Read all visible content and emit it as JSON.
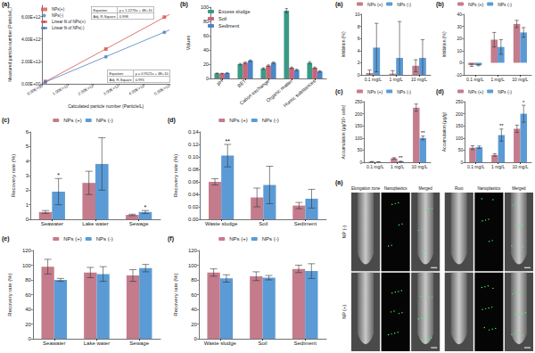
{
  "chart_data": [
    {
      "type": "scatter",
      "panel": "(a)",
      "x_label": "Calculated particle number (Particle/L)",
      "y_label": "Measured particle number (Particle/L)",
      "xlim": [
        0,
        5000000000000.0
      ],
      "xticks": [
        {
          "value": 0,
          "label": "0.00E+00"
        },
        {
          "value": 1000000000000.0,
          "label": "1.00E+12"
        },
        {
          "value": 2000000000000.0,
          "label": "2.00E+12"
        },
        {
          "value": 3000000000000.0,
          "label": "3.00E+12"
        },
        {
          "value": 4000000000000.0,
          "label": "4.00E+12"
        },
        {
          "value": 5000000000000.0,
          "label": "5.00E+12"
        }
      ],
      "ylim": [
        0,
        7000000000000.0
      ],
      "yticks": [
        {
          "value": 0,
          "label": "0.00E+00"
        },
        {
          "value": 2000000000000.0,
          "label": "2.00E+12"
        },
        {
          "value": 4000000000000.0,
          "label": "4.00E+12"
        },
        {
          "value": 6000000000000.0,
          "label": "6.00E+12"
        }
      ],
      "grid": false,
      "legend": "top-left",
      "series": [
        {
          "name": "NPs(+)",
          "type": "scatter",
          "marker": "square",
          "color": "#d9534f",
          "x": [
            120000000000.0,
            2500000000000.0,
            4800000000000.0
          ],
          "values": [
            210000000000.0,
            3100000000000.0,
            5950000000000.0
          ]
        },
        {
          "name": "NPs(-)",
          "type": "scatter",
          "marker": "circle",
          "color": "#4f81bd",
          "x": [
            120000000000.0,
            2500000000000.0,
            4800000000000.0
          ],
          "values": [
            160000000000.0,
            2400000000000.0,
            4600000000000.0
          ]
        },
        {
          "name": "Linear fit of NPs(+)",
          "type": "line",
          "line_style": "solid",
          "color": "#d9534f",
          "x": [
            0,
            5000000000000.0
          ],
          "values": [
            40000000000.0,
            6178000000000.0
          ]
        },
        {
          "name": "Linear fit of NPs(-)",
          "type": "line",
          "line_style": "solid",
          "color": "#4f81bd",
          "x": [
            0,
            5000000000000.0
          ],
          "values": [
            40000000000.0,
            4800000000000.0
          ]
        }
      ],
      "equations": [
        {
          "color": "#d9534f",
          "rows": [
            [
              "Equation",
              "y = 1.2276x + 4E+10"
            ],
            [
              "Adj. R-Square",
              "0.998"
            ]
          ]
        },
        {
          "color": "#4f81bd",
          "rows": [
            [
              "Equation",
              "y = 0.9521x + 4E+10"
            ],
            [
              "Adj. R-Square",
              "0.995"
            ]
          ]
        }
      ]
    },
    {
      "type": "bar",
      "panel": "(b)",
      "y_label": "Values",
      "categories": [
        "pH",
        "BET",
        "Cation exchange",
        "Organic matter",
        "Humic substances"
      ],
      "ylim": [
        0,
        100
      ],
      "yticks": [
        0,
        20,
        40,
        60,
        80,
        100
      ],
      "grid": false,
      "legend": "top-left",
      "series": [
        {
          "name": "Excess sludge",
          "color": "#3a9a86",
          "values": [
            7.2,
            20,
            14,
            95,
            22
          ],
          "errors": [
            0.3,
            1,
            1,
            3,
            1.5
          ]
        },
        {
          "name": "Soil",
          "color": "#c9657a",
          "values": [
            7,
            22,
            18,
            15,
            15
          ],
          "errors": [
            0.3,
            1,
            1,
            1,
            1
          ]
        },
        {
          "name": "Sediment",
          "color": "#4c86c6",
          "values": [
            7.5,
            25,
            22,
            12,
            10
          ],
          "errors": [
            0.3,
            1,
            1,
            1,
            1
          ]
        }
      ]
    },
    {
      "type": "bar",
      "panel": "(c)",
      "y_label": "Recovery rate (%)",
      "categories": [
        "Seawater",
        "Lake water",
        "Sewage"
      ],
      "ylim": [
        0,
        6
      ],
      "yticks": [
        0,
        1,
        2,
        3,
        4,
        5,
        6
      ],
      "grid": false,
      "legend": "top",
      "series": [
        {
          "name": "NPs (+)",
          "color": "#c47c8c",
          "values": [
            0.5,
            2.5,
            0.3
          ],
          "errors": [
            0.1,
            0.8,
            0.05
          ]
        },
        {
          "name": "NPs (-)",
          "color": "#5b9bd5",
          "values": [
            1.9,
            3.8,
            0.5
          ],
          "errors": [
            0.9,
            1.8,
            0.1
          ]
        }
      ],
      "annotations": [
        {
          "category": "Seawater",
          "series": "NPs (-)",
          "text": "*"
        },
        {
          "category": "Sewage",
          "series": "NPs (-)",
          "text": "*"
        }
      ]
    },
    {
      "type": "bar",
      "panel": "(d)",
      "y_label": "Recovery rate (%)",
      "categories": [
        "Waste sludge",
        "Soil",
        "Sediment"
      ],
      "ylim": [
        0,
        0.14
      ],
      "yticks": [
        {
          "value": 0,
          "label": "0.00"
        },
        0.02,
        0.04,
        0.06,
        0.08,
        {
          "value": 0.1,
          "label": "0.10"
        },
        0.12,
        0.14
      ],
      "grid": false,
      "legend": "top",
      "series": [
        {
          "name": "NPs (+)",
          "color": "#c47c8c",
          "values": [
            0.06,
            0.035,
            0.022
          ],
          "errors": [
            0.005,
            0.015,
            0.005
          ]
        },
        {
          "name": "NPs (-)",
          "color": "#5b9bd5",
          "values": [
            0.102,
            0.055,
            0.033
          ],
          "errors": [
            0.018,
            0.03,
            0.015
          ]
        }
      ],
      "annotations": [
        {
          "category": "Waste sludge",
          "series": "NPs (-)",
          "text": "**"
        }
      ]
    },
    {
      "type": "bar",
      "panel": "(e)",
      "y_label": "Recovery rate (%)",
      "categories": [
        "Seawater",
        "Lake water",
        "Sewage"
      ],
      "ylim": [
        0,
        120
      ],
      "yticks": [
        0,
        20,
        40,
        60,
        80,
        100,
        120
      ],
      "grid": false,
      "legend": "top",
      "series": [
        {
          "name": "NPs (+)",
          "color": "#c47c8c",
          "values": [
            98,
            90,
            86
          ],
          "errors": [
            10,
            7,
            8
          ]
        },
        {
          "name": "NPs (-)",
          "color": "#5b9bd5",
          "values": [
            80,
            88,
            96
          ],
          "errors": [
            2,
            10,
            5
          ]
        }
      ]
    },
    {
      "type": "bar",
      "panel": "(f)",
      "y_label": "Recovery rate (%)",
      "categories": [
        "Waste sludge",
        "Soil",
        "Sediment"
      ],
      "ylim": [
        0,
        120
      ],
      "yticks": [
        0,
        20,
        40,
        60,
        80,
        100,
        120
      ],
      "grid": false,
      "legend": "top",
      "series": [
        {
          "name": "NPs (+)",
          "color": "#c47c8c",
          "values": [
            90,
            85,
            95
          ],
          "errors": [
            5,
            6,
            5
          ]
        },
        {
          "name": "NPs (-)",
          "color": "#5b9bd5",
          "values": [
            82,
            83,
            92
          ],
          "errors": [
            5,
            3,
            10
          ]
        }
      ]
    },
    {
      "type": "bar",
      "panel": "(a)",
      "y_label": "Inhibition (%)",
      "categories": [
        "0.1 mg/L",
        "1 mg/L",
        "10 mg/L"
      ],
      "ylim": [
        0,
        10
      ],
      "yticks": [
        0,
        2,
        4,
        6,
        8,
        10
      ],
      "grid": false,
      "legend": "top",
      "series": [
        {
          "name": "NPs (+)",
          "color": "#c47c8c",
          "values": [
            0.3,
            0.2,
            1.5
          ],
          "errors": [
            0.5,
            0.5,
            1
          ]
        },
        {
          "name": "NPs (-)",
          "color": "#5b9bd5",
          "values": [
            4.5,
            2.8,
            2.8
          ],
          "errors": [
            4,
            6,
            3
          ]
        }
      ]
    },
    {
      "type": "bar",
      "panel": "(b)",
      "y_label": "Inhibition (%)",
      "categories": [
        "0.1 mg/L",
        "1 mg/L",
        "10 mg/L"
      ],
      "ylim": [
        -10,
        40
      ],
      "yticks": [
        -10,
        0,
        10,
        20,
        30,
        40
      ],
      "grid": false,
      "legend": "top",
      "series": [
        {
          "name": "NPs (+)",
          "color": "#c47c8c",
          "values": [
            -2,
            19,
            32
          ],
          "errors": [
            1,
            6,
            3
          ]
        },
        {
          "name": "NPs (-)",
          "color": "#5b9bd5",
          "values": [
            -2,
            13,
            25
          ],
          "errors": [
            0.5,
            6,
            4
          ]
        }
      ]
    },
    {
      "type": "bar",
      "panel": "(c)",
      "y_label": "Accumulation (μg/10⁸ cells)",
      "categories": [
        "0.1 mg/L",
        "1 mg/L",
        "10 mg/L"
      ],
      "ylim": [
        0,
        250
      ],
      "yticks": [
        0,
        50,
        100,
        150,
        200,
        250
      ],
      "grid": false,
      "legend": "top",
      "series": [
        {
          "name": "NPs (+)",
          "color": "#c47c8c",
          "values": [
            2,
            16,
            225
          ],
          "errors": [
            1,
            3,
            15
          ]
        },
        {
          "name": "NPs (-)",
          "color": "#5b9bd5",
          "values": [
            1,
            3,
            100
          ],
          "errors": [
            0.5,
            1,
            8
          ]
        }
      ],
      "annotations": [
        {
          "category": "1 mg/L",
          "series": "NPs (-)",
          "text": "**"
        },
        {
          "category": "10 mg/L",
          "series": "NPs (-)",
          "text": "**"
        }
      ]
    },
    {
      "type": "bar",
      "panel": "(d)",
      "y_label": "Accumulation (μg/g)",
      "categories": [
        "0.1 mg/L",
        "1 mg/L",
        "10 mg/L"
      ],
      "ylim": [
        0,
        250
      ],
      "yticks": [
        0,
        50,
        100,
        150,
        200,
        250
      ],
      "grid": false,
      "legend": "top",
      "series": [
        {
          "name": "NPs (+)",
          "color": "#c47c8c",
          "values": [
            60,
            30,
            138
          ],
          "errors": [
            8,
            5,
            15
          ]
        },
        {
          "name": "NPs (-)",
          "color": "#5b9bd5",
          "values": [
            62,
            112,
            200
          ],
          "errors": [
            5,
            25,
            35
          ]
        }
      ],
      "annotations": [
        {
          "category": "1 mg/L",
          "series": "NPs (-)",
          "text": "**"
        },
        {
          "category": "10 mg/L",
          "series": "NPs (-)",
          "text": "*"
        }
      ]
    }
  ],
  "micrograph": {
    "panel": "(a)",
    "columns": [
      "Elongation zone",
      "Nanoplastics",
      "Merged",
      "Root",
      "Nanoplastics",
      "Merged"
    ],
    "rows": [
      "NP (-)",
      "NP (+)"
    ]
  }
}
